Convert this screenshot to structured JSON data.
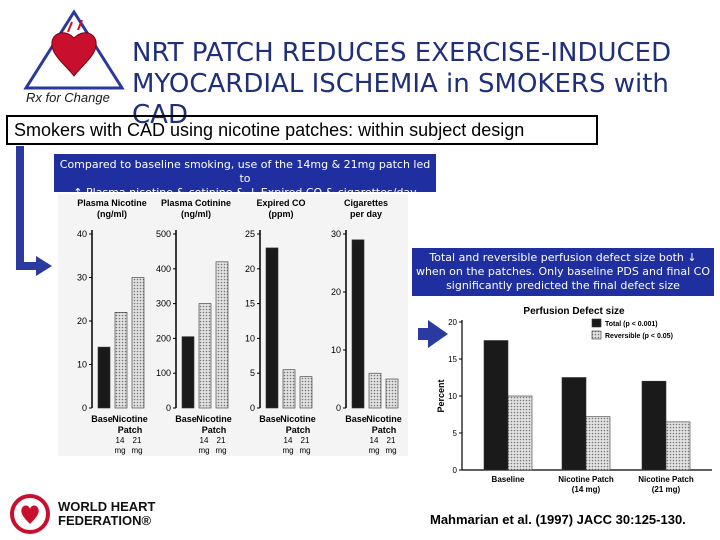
{
  "title_line1": "NRT PATCH REDUCES EXERCISE-INDUCED",
  "title_line2": "MYOCARDIAL ISCHEMIA in SMOKERS with CAD",
  "logo_text": "Rx for Change",
  "subtitle": "Smokers with CAD using nicotine patches: within subject design",
  "box1_line1": "Compared to baseline smoking, use of the 14mg & 21mg patch led to",
  "box1_line2": "↑ Plasma nicotine & cotinine   &  ↓ Expired CO & cigarettes/day",
  "box2_line1": "Total and reversible perfusion defect size both ↓",
  "box2_line2": "when on the patches. Only baseline PDS and final CO",
  "box2_line3": "significantly predicted the final defect size",
  "citation": "Mahmarian et al. (1997) JACC 30:125-130.",
  "whf_line1": "WORLD HEART",
  "whf_line2": "FEDERATION®",
  "colors": {
    "title": "#1f2f7a",
    "box": "#1f2fa0",
    "arrow": "#2a3aa0",
    "dark_bar": "#1a1a1a",
    "hatched_bar": "#bdbdbd"
  },
  "chart_data": [
    {
      "type": "bar",
      "title": "Plasma Nicotine (ng/ml)",
      "categories": [
        "Base",
        "Nicotine Patch 14 mg",
        "Nicotine Patch 21 mg"
      ],
      "x_labels": [
        "Base",
        "Nicotine",
        "Patch",
        "14",
        "21",
        "mg",
        "mg"
      ],
      "values": [
        14,
        22,
        30
      ],
      "ylim": [
        0,
        40
      ],
      "yticks": [
        "0",
        "10",
        "20",
        "30",
        "40"
      ]
    },
    {
      "type": "bar",
      "title": "Plasma Cotinine (ng/ml)",
      "categories": [
        "Base",
        "Nicotine Patch 14 mg",
        "Nicotine Patch 21 mg"
      ],
      "x_labels": [
        "Base",
        "Nicotine",
        "Patch",
        "14",
        "21",
        "mg",
        "mg"
      ],
      "values": [
        205,
        300,
        420
      ],
      "ylim": [
        0,
        500
      ],
      "yticks": [
        "0",
        "100",
        "200",
        "300",
        "400",
        "500"
      ]
    },
    {
      "type": "bar",
      "title": "Expired CO (ppm)",
      "categories": [
        "Base",
        "Nicotine Patch 14 mg",
        "Nicotine Patch 21 mg"
      ],
      "x_labels": [
        "Base",
        "Nicotine",
        "Patch",
        "14",
        "21",
        "mg",
        "mg"
      ],
      "values": [
        23,
        5.5,
        4.5
      ],
      "ylim": [
        0,
        25
      ],
      "yticks": [
        "0",
        "5",
        "10",
        "15",
        "20",
        "25"
      ]
    },
    {
      "type": "bar",
      "title": "Cigarettes per day",
      "categories": [
        "Base",
        "Nicotine Patch 14 mg",
        "Nicotine Patch 21 mg"
      ],
      "x_labels": [
        "Base",
        "Nicotine",
        "Patch",
        "14",
        "21",
        "mg",
        "mg"
      ],
      "values": [
        29,
        6,
        5
      ],
      "ylim": [
        0,
        30
      ],
      "yticks": [
        "0",
        "10",
        "20",
        "30"
      ]
    },
    {
      "type": "bar",
      "title": "Perfusion Defect size",
      "ylabel": "Percent",
      "categories": [
        "Baseline",
        "Nicotine Patch (14 mg)",
        "Nicotine Patch (21 mg)"
      ],
      "x_labels": [
        "Baseline",
        "Nicotine Patch",
        "(14 mg)",
        "Nicotine Patch",
        "(21 mg)"
      ],
      "series": [
        {
          "name": "Total (p < 0.001)",
          "values": [
            17.5,
            12.5,
            12.0
          ]
        },
        {
          "name": "Reversible (p < 0.05)",
          "values": [
            10.0,
            7.2,
            6.5
          ]
        }
      ],
      "ylim": [
        0,
        20
      ],
      "yticks": [
        "0",
        "5",
        "10",
        "15",
        "20"
      ]
    }
  ]
}
